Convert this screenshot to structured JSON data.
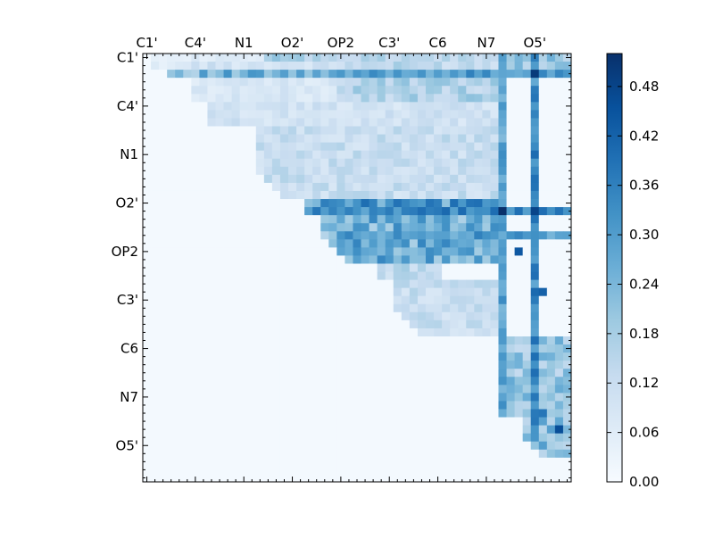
{
  "chart_data": {
    "type": "heatmap",
    "title": "",
    "xlabel": "",
    "ylabel": "",
    "n": 53,
    "atom_labels": [
      "C1'",
      "C4'",
      "N1",
      "O2'",
      "OP2",
      "C3'",
      "C6",
      "N7",
      "O5'"
    ],
    "x_tick_labels": [
      "C1'",
      "C4'",
      "N1",
      "O2'",
      "OP2",
      "C3'",
      "C6",
      "N7",
      "O5'"
    ],
    "y_tick_labels": [
      "C1'",
      "C4'",
      "N1",
      "O2'",
      "OP2",
      "C3'",
      "C6",
      "N7",
      "O5'"
    ],
    "x_tick_indices": [
      0,
      6,
      12,
      18,
      24,
      30,
      36,
      42,
      48
    ],
    "y_tick_indices": [
      0,
      6,
      12,
      18,
      24,
      30,
      36,
      42,
      48
    ],
    "colorbar": {
      "min": 0.0,
      "max": 0.52,
      "ticks": [
        "0.00",
        "0.06",
        "0.12",
        "0.18",
        "0.24",
        "0.30",
        "0.36",
        "0.42",
        "0.48"
      ],
      "tick_values": [
        0.0,
        0.06,
        0.12,
        0.18,
        0.24,
        0.3,
        0.36,
        0.42,
        0.48
      ]
    },
    "colormap": "Blues",
    "colormap_stops": [
      "#f7fbff",
      "#deebf7",
      "#c6dbef",
      "#9ecae1",
      "#6baed6",
      "#4292c6",
      "#2171b5",
      "#08519c",
      "#08306b"
    ],
    "triangle": "upper",
    "background_value": 0.01,
    "bands": [
      {
        "rows": [
          0,
          1
        ],
        "cols": [
          1,
          14
        ],
        "value": 0.06
      },
      {
        "rows": [
          0,
          1
        ],
        "cols": [
          15,
          23
        ],
        "value": 0.16
      },
      {
        "rows": [
          0,
          1
        ],
        "cols": [
          24,
          44
        ],
        "value": 0.14
      },
      {
        "rows": [
          0,
          1
        ],
        "cols": [
          45,
          52
        ],
        "value": 0.22
      },
      {
        "rows": [
          1,
          2
        ],
        "cols": [
          5,
          24
        ],
        "value": 0.1
      },
      {
        "rows": [
          2,
          2
        ],
        "cols": [
          3,
          44
        ],
        "value": 0.24
      },
      {
        "rows": [
          3,
          5
        ],
        "cols": [
          6,
          24
        ],
        "value": 0.08
      },
      {
        "rows": [
          3,
          5
        ],
        "cols": [
          24,
          44
        ],
        "value": 0.16
      },
      {
        "rows": [
          6,
          8
        ],
        "cols": [
          8,
          44
        ],
        "value": 0.1
      },
      {
        "rows": [
          9,
          17
        ],
        "cols": [
          14,
          44
        ],
        "value": 0.12
      },
      {
        "rows": [
          18,
          19
        ],
        "cols": [
          20,
          44
        ],
        "value": 0.3
      },
      {
        "rows": [
          20,
          25
        ],
        "cols": [
          22,
          44
        ],
        "value": 0.24
      },
      {
        "rows": [
          20,
          25
        ],
        "cols": [
          24,
          44
        ],
        "value": 0.26
      },
      {
        "rows": [
          26,
          27
        ],
        "cols": [
          29,
          36
        ],
        "value": 0.14
      },
      {
        "rows": [
          28,
          34
        ],
        "cols": [
          31,
          44
        ],
        "value": 0.12
      },
      {
        "rows": [
          35,
          44
        ],
        "cols": [
          44,
          52
        ],
        "value": 0.2
      },
      {
        "rows": [
          45,
          49
        ],
        "cols": [
          47,
          52
        ],
        "value": 0.22
      }
    ],
    "highlight_columns": [
      {
        "col": 44,
        "rows": [
          0,
          44
        ],
        "value": 0.28
      },
      {
        "col": 48,
        "rows": [
          0,
          47
        ],
        "value": 0.34
      }
    ],
    "highlight_rows": [
      {
        "row": 2,
        "cols": [
          26,
          52
        ],
        "value": 0.3
      },
      {
        "row": 19,
        "cols": [
          20,
          52
        ],
        "value": 0.34
      },
      {
        "row": 22,
        "cols": [
          26,
          52
        ],
        "value": 0.3
      }
    ],
    "peaks": [
      {
        "row": 2,
        "col": 48,
        "value": 0.5
      },
      {
        "row": 19,
        "col": 44,
        "value": 0.52
      },
      {
        "row": 19,
        "col": 48,
        "value": 0.48
      },
      {
        "row": 24,
        "col": 46,
        "value": 0.44
      },
      {
        "row": 29,
        "col": 49,
        "value": 0.42
      },
      {
        "row": 46,
        "col": 51,
        "value": 0.46
      },
      {
        "row": 44,
        "col": 49,
        "value": 0.38
      }
    ]
  }
}
